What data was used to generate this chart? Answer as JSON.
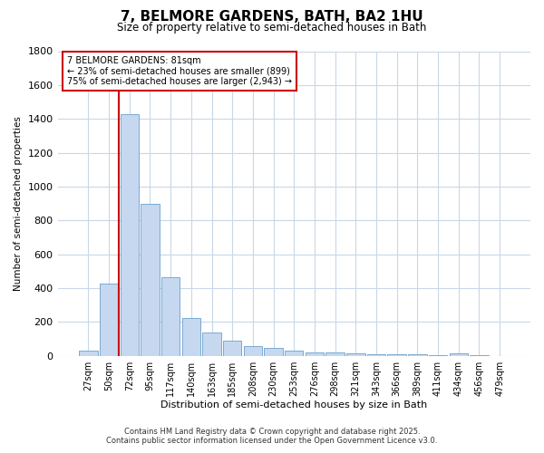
{
  "title": "7, BELMORE GARDENS, BATH, BA2 1HU",
  "subtitle": "Size of property relative to semi-detached houses in Bath",
  "xlabel": "Distribution of semi-detached houses by size in Bath",
  "ylabel": "Number of semi-detached properties",
  "bar_color": "#c5d8f0",
  "bar_edge_color": "#7aaad0",
  "background_color": "#ffffff",
  "grid_color": "#c8d8e8",
  "categories": [
    "27sqm",
    "50sqm",
    "72sqm",
    "95sqm",
    "117sqm",
    "140sqm",
    "163sqm",
    "185sqm",
    "208sqm",
    "230sqm",
    "253sqm",
    "276sqm",
    "298sqm",
    "321sqm",
    "343sqm",
    "366sqm",
    "389sqm",
    "411sqm",
    "434sqm",
    "456sqm",
    "479sqm"
  ],
  "values": [
    28,
    425,
    1430,
    900,
    465,
    225,
    135,
    92,
    58,
    45,
    30,
    22,
    18,
    13,
    10,
    8,
    7,
    6,
    15,
    6,
    0
  ],
  "ylim": [
    0,
    1800
  ],
  "yticks": [
    0,
    200,
    400,
    600,
    800,
    1000,
    1200,
    1400,
    1600,
    1800
  ],
  "red_line_x": 2,
  "annotation_title": "7 BELMORE GARDENS: 81sqm",
  "annotation_line1": "← 23% of semi-detached houses are smaller (899)",
  "annotation_line2": "75% of semi-detached houses are larger (2,943) →",
  "annotation_box_facecolor": "#ffffff",
  "annotation_box_edgecolor": "#cc0000",
  "red_line_color": "#cc0000",
  "footer_line1": "Contains HM Land Registry data © Crown copyright and database right 2025.",
  "footer_line2": "Contains public sector information licensed under the Open Government Licence v3.0."
}
